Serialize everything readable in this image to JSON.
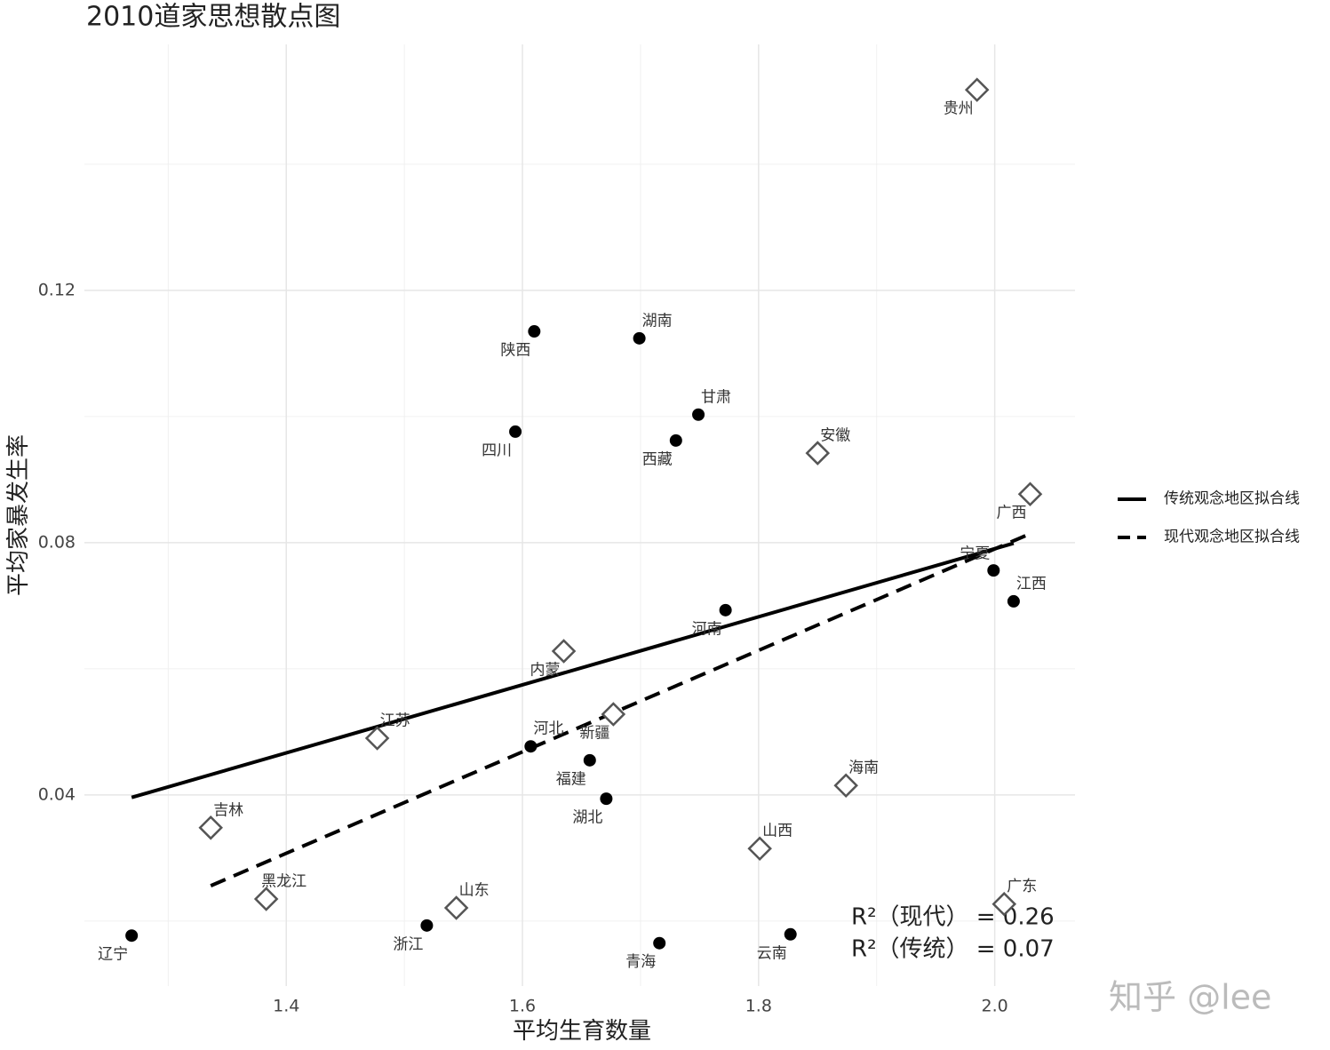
{
  "chart_data": {
    "type": "scatter",
    "title": "2010道家思想散点图",
    "x_label": "平均生育数量",
    "y_label": "平均家暴发生率",
    "xlim": [
      1.229,
      2.068
    ],
    "ylim": [
      0.0097,
      0.159
    ],
    "xticks": [
      1.4,
      1.6,
      1.8,
      {
        "value": 2,
        "label": "2.0"
      }
    ],
    "yticks": [
      0.04,
      0.08,
      0.12
    ],
    "x_minor_ticks": [
      1.3,
      1.5,
      1.7,
      1.9
    ],
    "y_minor_ticks": [
      0.02,
      0.06,
      0.1,
      0.14
    ],
    "grid": true,
    "legend": "right",
    "point_sets": [
      {
        "marker": "circle",
        "color": "#000000",
        "labels": [
          "辽宁",
          "浙江",
          "青海",
          "云南",
          "湖北",
          "福建",
          "河北",
          "河南",
          "宁夏",
          "江西",
          "四川",
          "西藏",
          "甘肃",
          "陕西",
          "湖南"
        ],
        "x": [
          1.269,
          1.519,
          1.716,
          1.827,
          1.671,
          1.657,
          1.607,
          1.772,
          1.999,
          2.016,
          1.594,
          1.73,
          1.749,
          1.61,
          1.699
        ],
        "values": [
          0.0177,
          0.0193,
          0.0165,
          0.0179,
          0.0394,
          0.0455,
          0.0477,
          0.0693,
          0.0756,
          0.0707,
          0.0976,
          0.0962,
          0.1003,
          0.1135,
          0.1124
        ]
      },
      {
        "marker": "diamond",
        "color": "#555555",
        "labels": [
          "吉林",
          "黑龙江",
          "山东",
          "江苏",
          "内蒙",
          "新疆",
          "山西",
          "海南",
          "广东",
          "安徽",
          "广西",
          "贵州"
        ],
        "x": [
          1.336,
          1.383,
          1.544,
          1.477,
          1.635,
          1.677,
          1.801,
          1.874,
          2.008,
          1.85,
          2.03,
          1.985
        ],
        "values": [
          0.0348,
          0.0235,
          0.0221,
          0.049,
          0.0628,
          0.0528,
          0.0315,
          0.0415,
          0.0227,
          0.0942,
          0.0877,
          0.1518
        ]
      }
    ],
    "series": [
      {
        "name": "传统观念地区拟合线",
        "color": "#000000",
        "dash": "solid",
        "x": [
          1.269,
          2.016
        ],
        "values": [
          0.0396,
          0.0799
        ]
      },
      {
        "name": "现代观念地区拟合线",
        "color": "#000000",
        "dash": "dashed",
        "x": [
          1.336,
          2.031
        ],
        "values": [
          0.0256,
          0.0815
        ]
      }
    ],
    "annotations": [
      "R²（现代） = 0.26",
      "R²（传统） = 0.07"
    ],
    "watermark": "知乎 @lee"
  }
}
